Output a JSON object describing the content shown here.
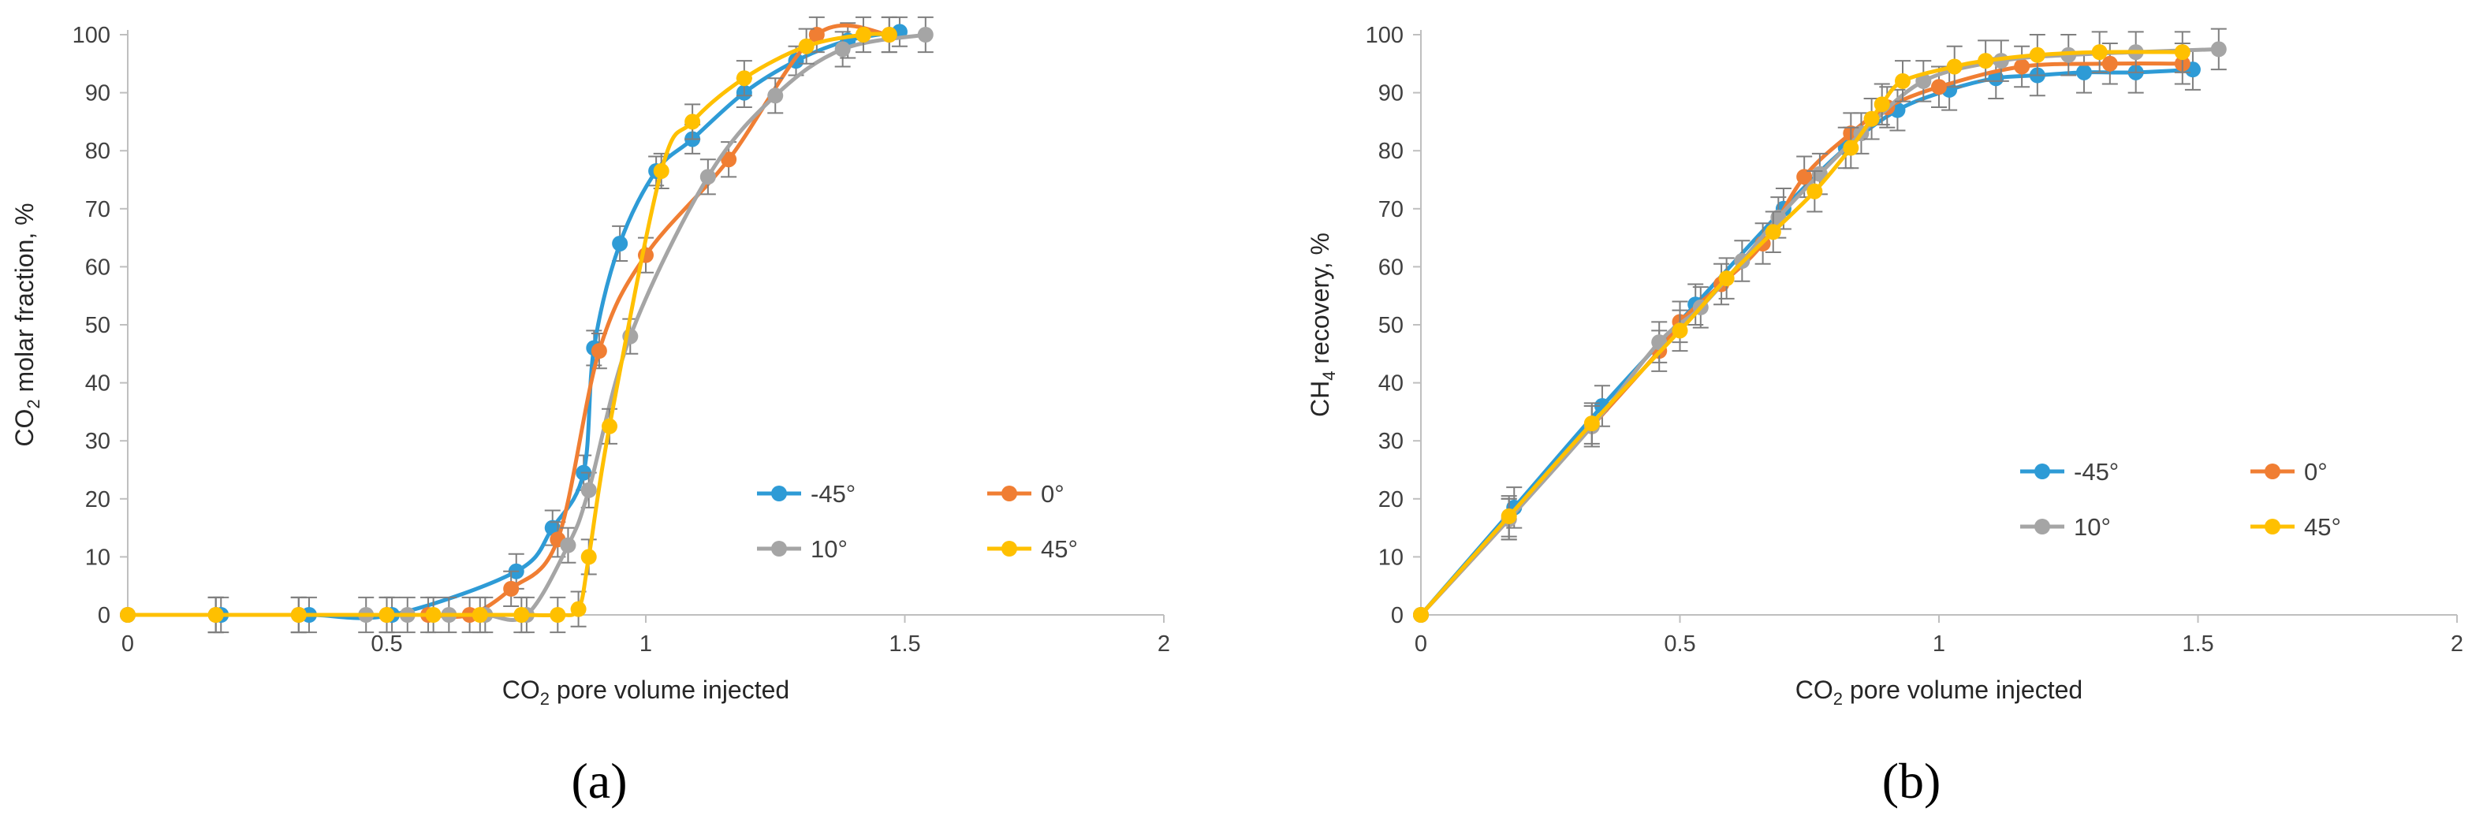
{
  "chart_data": [
    {
      "type": "line",
      "panel_label": "(a)",
      "xlabel": {
        "prefix": "CO",
        "sub": "2",
        "suffix": " pore volume injected"
      },
      "ylabel": {
        "prefix": "CO",
        "sub": "2",
        "suffix": " molar fraction, %"
      },
      "xlim": [
        0,
        2
      ],
      "ylim": [
        0,
        100
      ],
      "xticks": [
        0,
        0.5,
        1,
        1.5,
        2
      ],
      "xtick_labels": [
        "0",
        "0.5",
        "1",
        "1.5",
        "2"
      ],
      "yticks": [
        0,
        10,
        20,
        30,
        40,
        50,
        60,
        70,
        80,
        90,
        100
      ],
      "grid": false,
      "legend_position": "bottom-right",
      "series": [
        {
          "name": "-45°",
          "color": "#2E9BD6",
          "x": [
            0,
            0.18,
            0.35,
            0.51,
            0.75,
            0.82,
            0.88,
            0.9,
            0.95,
            1.02,
            1.09,
            1.19,
            1.29,
            1.39,
            1.49
          ],
          "y": [
            0,
            0,
            0,
            0,
            7.5,
            15,
            24.5,
            46,
            64,
            76.5,
            82,
            90,
            95.5,
            99,
            100.5
          ],
          "err": [
            0,
            3,
            3,
            3,
            3,
            3,
            3,
            3,
            3,
            2.5,
            2.5,
            2.5,
            2.5,
            3,
            2.5
          ]
        },
        {
          "name": "0°",
          "color": "#F07E33",
          "x": [
            0,
            0.17,
            0.33,
            0.5,
            0.58,
            0.66,
            0.74,
            0.83,
            0.91,
            1.0,
            1.16,
            1.33,
            1.47
          ],
          "y": [
            0,
            0,
            0,
            0,
            0,
            0,
            4.5,
            13,
            45.5,
            62,
            78.5,
            100,
            100
          ],
          "err": [
            0,
            3,
            3,
            3,
            3,
            3,
            3,
            3,
            3,
            3,
            3,
            3,
            3
          ]
        },
        {
          "name": "10°",
          "color": "#A5A5A5",
          "x": [
            0,
            0.17,
            0.33,
            0.46,
            0.54,
            0.62,
            0.69,
            0.77,
            0.85,
            0.89,
            0.97,
            1.12,
            1.25,
            1.38,
            1.54
          ],
          "y": [
            0,
            0,
            0,
            0,
            0,
            0,
            0,
            0,
            12,
            21.5,
            48,
            75.5,
            89.5,
            97.5,
            100
          ],
          "err": [
            0,
            3,
            3,
            3,
            3,
            3,
            3,
            3,
            3,
            3,
            3,
            3,
            3,
            3,
            3
          ]
        },
        {
          "name": "45°",
          "color": "#FFC000",
          "x": [
            0,
            0.17,
            0.33,
            0.5,
            0.59,
            0.68,
            0.76,
            0.83,
            0.87,
            0.89,
            0.93,
            1.03,
            1.09,
            1.19,
            1.31,
            1.42,
            1.47
          ],
          "y": [
            0,
            0,
            0,
            0,
            0,
            0,
            0,
            0,
            1,
            10,
            32.5,
            76.5,
            85,
            92.5,
            98,
            100,
            100
          ],
          "err": [
            0,
            3,
            3,
            3,
            3,
            3,
            3,
            3,
            3,
            3,
            3,
            3,
            3,
            3,
            3,
            3,
            3
          ]
        }
      ]
    },
    {
      "type": "line",
      "panel_label": "(b)",
      "xlabel": {
        "prefix": "CO",
        "sub": "2",
        "suffix": " pore volume injected"
      },
      "ylabel": {
        "prefix": "CH",
        "sub": "4",
        "suffix": " recovery, %"
      },
      "xlim": [
        0,
        2
      ],
      "ylim": [
        0,
        100
      ],
      "xticks": [
        0,
        0.5,
        1,
        1.5,
        2
      ],
      "xtick_labels": [
        "0",
        "0.5",
        "1",
        "1.5",
        "2"
      ],
      "yticks": [
        0,
        10,
        20,
        30,
        40,
        50,
        60,
        70,
        80,
        90,
        100
      ],
      "grid": false,
      "legend_position": "bottom-right",
      "series": [
        {
          "name": "-45°",
          "color": "#2E9BD6",
          "x": [
            0,
            0.18,
            0.35,
            0.53,
            0.7,
            0.82,
            0.92,
            1.02,
            1.11,
            1.19,
            1.28,
            1.38,
            1.49
          ],
          "y": [
            0,
            18.5,
            36,
            53.5,
            70,
            80.5,
            87,
            90.5,
            92.5,
            93,
            93.5,
            93.5,
            94
          ],
          "err": [
            0,
            3.5,
            3.5,
            3.5,
            3.5,
            3.5,
            3.5,
            3.5,
            3.5,
            3.5,
            3.5,
            3.5,
            3.5
          ]
        },
        {
          "name": "0°",
          "color": "#F07E33",
          "x": [
            0,
            0.17,
            0.33,
            0.46,
            0.5,
            0.58,
            0.66,
            0.74,
            0.83,
            0.9,
            1.0,
            1.16,
            1.33,
            1.47
          ],
          "y": [
            0,
            16.5,
            32.5,
            45.5,
            50.5,
            57,
            64,
            75.5,
            83,
            87.5,
            91,
            94.5,
            95,
            95
          ],
          "err": [
            0,
            3.5,
            3.5,
            3.5,
            3.5,
            3.5,
            3.5,
            3.5,
            3.5,
            3.5,
            3.5,
            3.5,
            3.5,
            3.5
          ]
        },
        {
          "name": "10°",
          "color": "#A5A5A5",
          "x": [
            0,
            0.17,
            0.33,
            0.46,
            0.54,
            0.62,
            0.69,
            0.77,
            0.85,
            0.97,
            1.12,
            1.25,
            1.38,
            1.54
          ],
          "y": [
            0,
            16.5,
            32.5,
            47,
            53,
            61,
            68.5,
            76,
            83,
            92,
            95.5,
            96.5,
            97,
            97.5
          ],
          "err": [
            0,
            3.5,
            3.5,
            3.5,
            3.5,
            3.5,
            3.5,
            3.5,
            3.5,
            3.5,
            3.5,
            3.5,
            3.5,
            3.5
          ]
        },
        {
          "name": "45°",
          "color": "#FFC000",
          "x": [
            0,
            0.17,
            0.33,
            0.5,
            0.59,
            0.68,
            0.76,
            0.83,
            0.87,
            0.89,
            0.93,
            1.03,
            1.09,
            1.19,
            1.31,
            1.47
          ],
          "y": [
            0,
            17,
            33,
            49,
            58,
            66,
            73,
            80.5,
            85.5,
            88,
            92,
            94.5,
            95.5,
            96.5,
            97,
            97
          ],
          "err": [
            0,
            3.5,
            3.5,
            3.5,
            3.5,
            3.5,
            3.5,
            3.5,
            3.5,
            3.5,
            3.5,
            3.5,
            3.5,
            3.5,
            3.5,
            3.5
          ]
        }
      ]
    }
  ]
}
